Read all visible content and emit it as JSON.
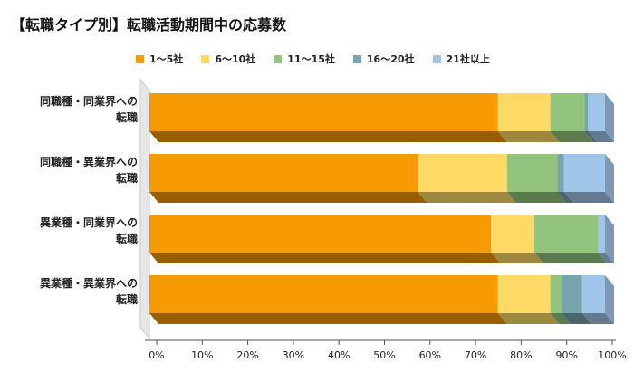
{
  "title": "【転職タイプ別】転職活動期間中の応募数",
  "chart_data": {
    "type": "bar",
    "orientation": "horizontal",
    "stacked": "percent",
    "style": "3d",
    "title": "【転職タイプ別】転職活動期間中の応募数",
    "categories": [
      "同職種・同業界への転職",
      "同職種・異業界への転職",
      "異業種・同業界への転職",
      "異業種・異業界への転職"
    ],
    "category_lines": [
      [
        "同職種・同業界への",
        "転職"
      ],
      [
        "同職種・異業界への",
        "転職"
      ],
      [
        "異業種・同業界への",
        "転職"
      ],
      [
        "異業種・異業界への",
        "転職"
      ]
    ],
    "series": [
      {
        "name": "1～5社",
        "color": "#f59a00",
        "values": [
          76.5,
          59.0,
          75.0,
          76.5
        ]
      },
      {
        "name": "6～10社",
        "color": "#ffd966",
        "values": [
          11.5,
          19.5,
          9.5,
          11.5
        ]
      },
      {
        "name": "11～15社",
        "color": "#93c47d",
        "values": [
          7.5,
          11.0,
          14.0,
          2.5
        ]
      },
      {
        "name": "16～20社",
        "color": "#76a5af",
        "values": [
          0.8,
          1.5,
          0.0,
          4.5
        ]
      },
      {
        "name": "21社以上",
        "color": "#9fc5e8",
        "values": [
          3.7,
          9.0,
          1.5,
          5.0
        ]
      }
    ],
    "x_ticks": [
      "0%",
      "10%",
      "20%",
      "30%",
      "40%",
      "50%",
      "60%",
      "70%",
      "80%",
      "90%",
      "100%"
    ],
    "xlim": [
      0,
      100
    ],
    "grid": false,
    "legend": "top"
  }
}
